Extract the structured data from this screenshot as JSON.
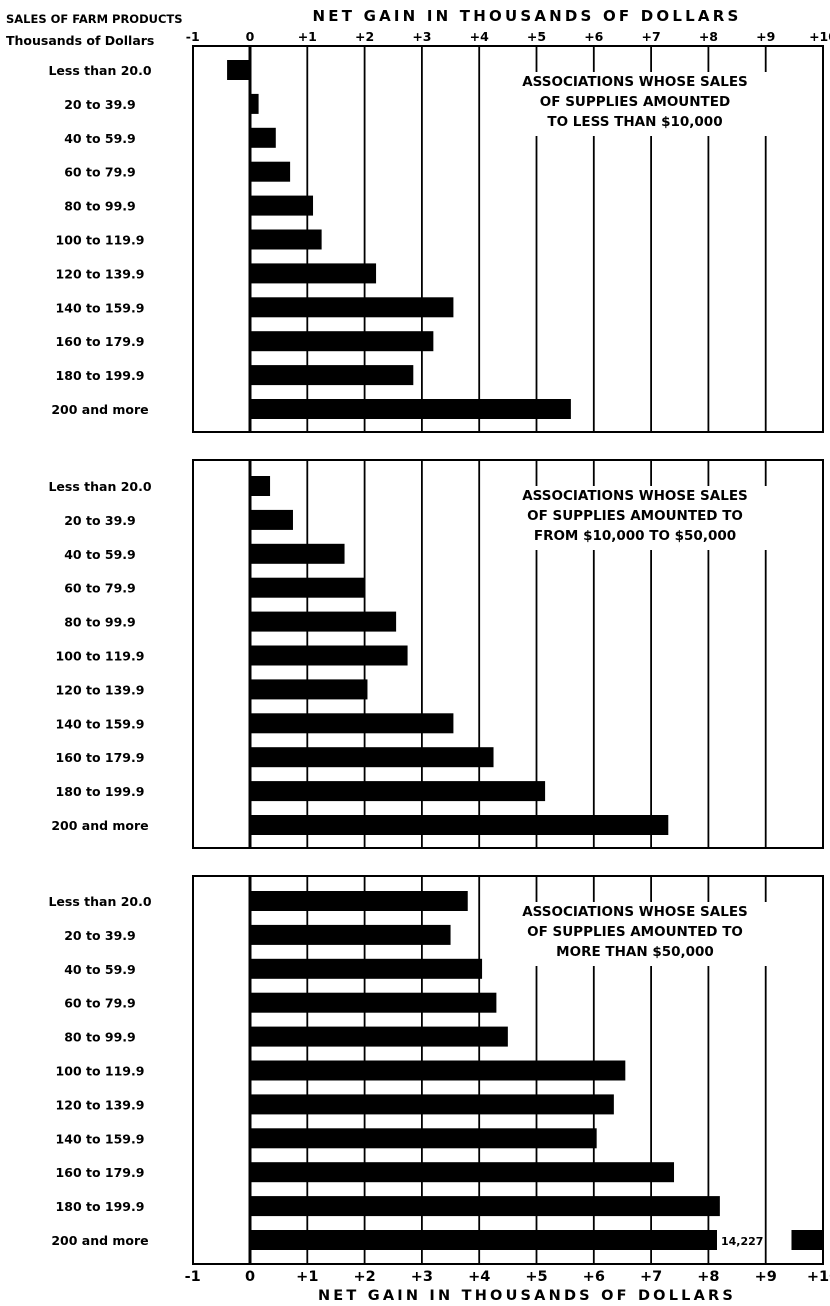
{
  "header": {
    "stub_line1": "SALES OF FARM PRODUCTS",
    "stub_line2": "Thousands of Dollars",
    "axis_title": "NET GAIN IN THOUSANDS OF DOLLARS"
  },
  "chart_data": {
    "type": "bar",
    "orientation": "horizontal",
    "xlabel": "NET GAIN IN THOUSANDS OF DOLLARS",
    "ylabel": "SALES OF FARM PRODUCTS Thousands of Dollars",
    "xlim": [
      -1,
      10
    ],
    "x_ticks": [
      "-1",
      "0",
      "+1",
      "+2",
      "+3",
      "+4",
      "+5",
      "+6",
      "+7",
      "+8",
      "+9",
      "+10"
    ],
    "categories": [
      "Less than 20.0",
      "20 to 39.9",
      "40 to 59.9",
      "60 to 79.9",
      "80 to 99.9",
      "100 to 119.9",
      "120 to 139.9",
      "140 to 159.9",
      "160 to 179.9",
      "180 to 199.9",
      "200 and more"
    ],
    "grid": "vertical lines at whole thousands",
    "panels": [
      {
        "title": [
          "ASSOCIATIONS WHOSE SALES",
          "OF SUPPLIES AMOUNTED",
          "TO LESS THAN $10,000"
        ],
        "values": [
          -0.4,
          0.15,
          0.45,
          0.7,
          1.1,
          1.25,
          2.2,
          3.55,
          3.2,
          2.85,
          5.6
        ]
      },
      {
        "title": [
          "ASSOCIATIONS WHOSE SALES",
          "OF SUPPLIES AMOUNTED TO",
          "FROM $10,000 TO $50,000"
        ],
        "values": [
          0.35,
          0.75,
          1.65,
          2.0,
          2.55,
          2.75,
          2.05,
          3.55,
          4.25,
          5.15,
          7.3
        ]
      },
      {
        "title": [
          "ASSOCIATIONS WHOSE SALES",
          "OF SUPPLIES AMOUNTED TO",
          "MORE THAN $50,000"
        ],
        "values": [
          3.8,
          3.5,
          4.05,
          4.3,
          4.5,
          6.55,
          6.35,
          6.05,
          7.4,
          8.2,
          14.227
        ],
        "annotation": "14,227"
      }
    ]
  }
}
